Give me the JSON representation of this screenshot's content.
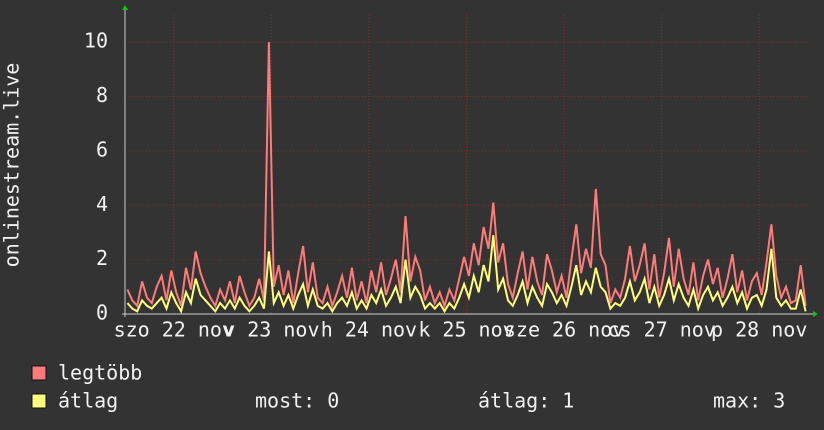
{
  "chart_data": {
    "type": "line",
    "ylabel": "onlinestream.live",
    "xlim": [
      0,
      7
    ],
    "xticks": [
      {
        "value": 0.5,
        "label": "szo 22 nov"
      },
      {
        "value": 1.5,
        "label": "v 23 nov"
      },
      {
        "value": 2.5,
        "label": "h 24 nov"
      },
      {
        "value": 3.5,
        "label": "k 25 nov"
      },
      {
        "value": 4.5,
        "label": "sze 26 nov"
      },
      {
        "value": 5.5,
        "label": "cs 27 nov"
      },
      {
        "value": 6.5,
        "label": "p 28 nov"
      }
    ],
    "ylim": [
      0,
      11
    ],
    "yticks": [
      0,
      2,
      4,
      6,
      8,
      10
    ],
    "grid": true,
    "series": [
      {
        "name": "legtöbb",
        "color": "#ff7b7b",
        "values": [
          0.9,
          0.5,
          0.3,
          1.2,
          0.6,
          0.4,
          1.0,
          1.4,
          0.5,
          1.6,
          0.8,
          0.3,
          1.7,
          0.9,
          2.3,
          1.5,
          1.0,
          0.6,
          0.3,
          0.9,
          0.5,
          1.2,
          0.4,
          1.4,
          0.8,
          0.3,
          0.6,
          1.3,
          0.5,
          10.0,
          1.0,
          1.8,
          0.7,
          1.6,
          0.4,
          1.5,
          2.5,
          0.8,
          1.9,
          0.6,
          0.4,
          1.0,
          0.3,
          0.8,
          1.4,
          0.6,
          1.7,
          0.5,
          1.2,
          0.4,
          1.6,
          0.8,
          1.9,
          0.7,
          1.3,
          2.0,
          0.8,
          3.6,
          1.2,
          2.1,
          1.6,
          0.5,
          1.0,
          0.4,
          0.8,
          0.3,
          0.9,
          0.5,
          1.3,
          2.1,
          1.4,
          2.6,
          1.8,
          3.2,
          2.4,
          4.1,
          1.9,
          2.6,
          1.1,
          0.6,
          1.5,
          2.3,
          0.9,
          2.1,
          1.2,
          0.7,
          2.2,
          1.6,
          0.8,
          1.4,
          0.6,
          2.0,
          3.3,
          1.5,
          2.4,
          1.7,
          4.6,
          2.2,
          1.8,
          0.4,
          0.9,
          0.6,
          1.3,
          2.5,
          1.2,
          1.8,
          2.6,
          0.9,
          2.2,
          0.6,
          1.5,
          2.8,
          1.0,
          2.4,
          1.3,
          0.7,
          1.9,
          0.5,
          1.4,
          2.0,
          1.1,
          1.7,
          0.6,
          1.3,
          2.2,
          0.8,
          1.6,
          0.5,
          1.2,
          1.5,
          0.7,
          1.9,
          3.3,
          1.4,
          0.6,
          1.0,
          0.4,
          0.5,
          1.8,
          0.3
        ]
      },
      {
        "name": "átlag",
        "color": "#ffff7b",
        "values": [
          0.4,
          0.2,
          0.1,
          0.5,
          0.3,
          0.2,
          0.4,
          0.6,
          0.2,
          0.8,
          0.4,
          0.1,
          0.8,
          0.4,
          1.3,
          0.7,
          0.5,
          0.3,
          0.1,
          0.4,
          0.2,
          0.5,
          0.2,
          0.6,
          0.3,
          0.1,
          0.3,
          0.6,
          0.2,
          2.3,
          0.4,
          0.8,
          0.3,
          0.7,
          0.2,
          0.7,
          1.1,
          0.3,
          0.9,
          0.3,
          0.2,
          0.4,
          0.1,
          0.4,
          0.6,
          0.3,
          0.8,
          0.2,
          0.5,
          0.2,
          0.7,
          0.4,
          0.9,
          0.3,
          0.6,
          1.0,
          0.4,
          2.0,
          0.6,
          1.0,
          0.7,
          0.2,
          0.4,
          0.2,
          0.4,
          0.1,
          0.4,
          0.2,
          0.6,
          1.1,
          0.6,
          1.4,
          0.8,
          1.8,
          1.2,
          2.9,
          0.9,
          1.3,
          0.5,
          0.3,
          0.7,
          1.2,
          0.4,
          1.0,
          0.6,
          0.3,
          1.1,
          0.8,
          0.4,
          0.7,
          0.3,
          1.0,
          1.8,
          0.7,
          1.2,
          0.8,
          1.7,
          1.0,
          0.8,
          0.2,
          0.4,
          0.3,
          0.6,
          1.2,
          0.5,
          0.8,
          1.3,
          0.4,
          1.0,
          0.3,
          0.7,
          1.3,
          0.5,
          1.1,
          0.6,
          0.3,
          0.9,
          0.2,
          0.7,
          1.0,
          0.5,
          0.8,
          0.3,
          0.6,
          1.0,
          0.4,
          0.8,
          0.2,
          0.6,
          0.7,
          0.3,
          0.9,
          2.4,
          0.6,
          0.3,
          0.5,
          0.2,
          0.2,
          0.9,
          0.1
        ]
      }
    ],
    "stats": [
      "most: 0",
      "átlag: 1",
      "max: 3"
    ]
  }
}
